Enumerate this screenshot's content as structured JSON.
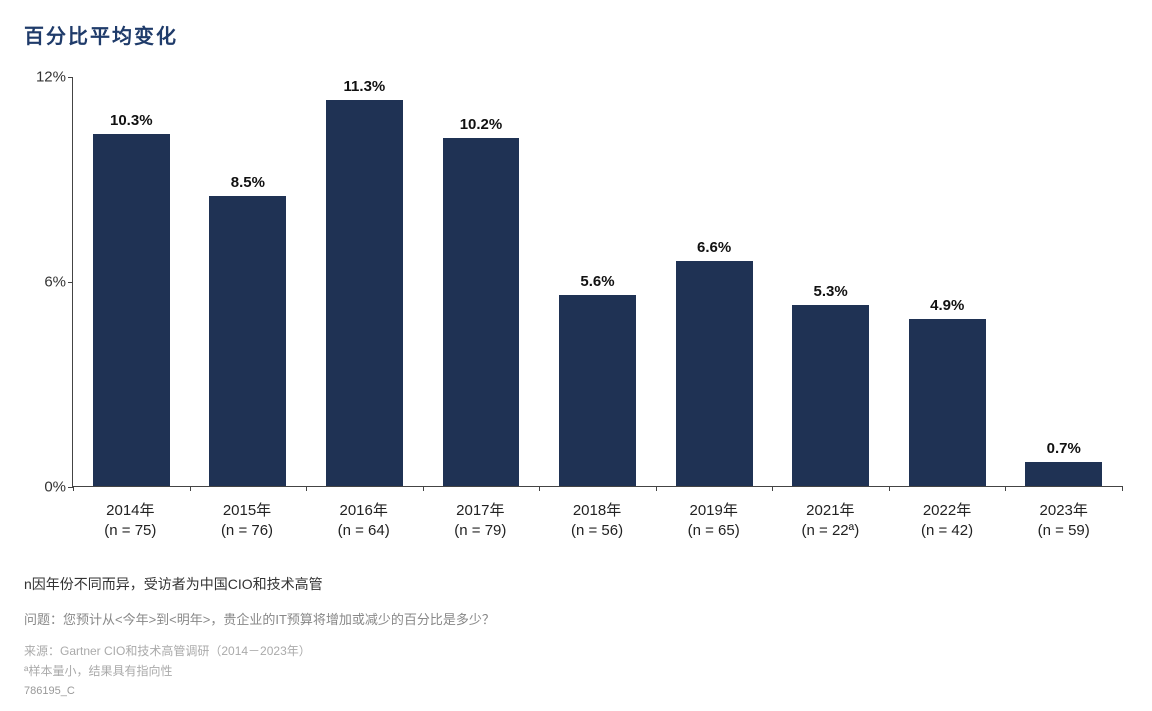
{
  "title": "百分比平均变化",
  "chart": {
    "type": "bar",
    "bar_color": "#1f3254",
    "background_color": "#ffffff",
    "axis_color": "#444444",
    "title_color": "#1f3b6a",
    "title_fontsize": 20,
    "label_fontsize": 15,
    "value_label_fontsize": 15,
    "value_label_fontweight": "700",
    "bar_width_ratio": 0.66,
    "ylim": [
      0,
      12
    ],
    "yticks": [
      0,
      6,
      12
    ],
    "ytick_labels": [
      "0%",
      "6%",
      "12%"
    ],
    "categories": [
      {
        "year": "2014年",
        "n": "(n = 75)"
      },
      {
        "year": "2015年",
        "n": "(n = 76)"
      },
      {
        "year": "2016年",
        "n": "(n = 64)"
      },
      {
        "year": "2017年",
        "n": "(n = 79)"
      },
      {
        "year": "2018年",
        "n": "(n = 56)"
      },
      {
        "year": "2019年",
        "n": "(n = 65)"
      },
      {
        "year": "2021年",
        "n": "(n = 22ª)"
      },
      {
        "year": "2022年",
        "n": "(n = 42)"
      },
      {
        "year": "2023年",
        "n": "(n = 59)"
      }
    ],
    "values": [
      10.3,
      8.5,
      11.3,
      10.2,
      5.6,
      6.6,
      5.3,
      4.9,
      0.7
    ],
    "value_labels": [
      "10.3%",
      "8.5%",
      "11.3%",
      "10.2%",
      "5.6%",
      "6.6%",
      "5.3%",
      "4.9%",
      "0.7%"
    ]
  },
  "footer": {
    "note1": "n因年份不同而异，受访者为中国CIO和技术高管",
    "note2": "问题：您预计从<今年>到<明年>，贵企业的IT预算将增加或减少的百分比是多少？",
    "source": "来源：Gartner CIO和技术高管调研（2014－2023年）",
    "footnote": "ª样本量小，结果具有指向性",
    "code": "786195_C"
  }
}
